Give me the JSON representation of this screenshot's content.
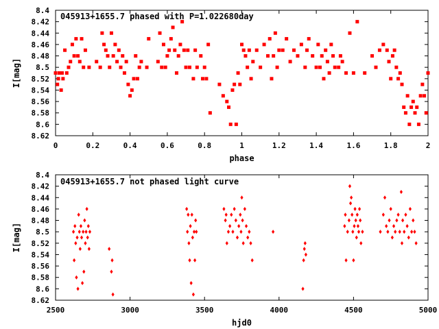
{
  "chart_data": [
    {
      "type": "scatter",
      "title": "045913+1655.7 phased with P=1.022680day",
      "xlabel": "phase",
      "ylabel": "I[mag]",
      "xlim": [
        0,
        2
      ],
      "ylim": [
        8.62,
        8.4
      ],
      "y_inverted": true,
      "xticks": [
        0,
        0.2,
        0.4,
        0.6,
        0.8,
        1,
        1.2,
        1.4,
        1.6,
        1.8,
        2
      ],
      "xtick_labels": [
        "0",
        "0.2",
        "0.4",
        "0.6",
        "0.8",
        "1",
        "1.2",
        "1.4",
        "1.6",
        "1.8",
        "2"
      ],
      "yticks": [
        8.4,
        8.42,
        8.44,
        8.46,
        8.48,
        8.5,
        8.52,
        8.54,
        8.56,
        8.58,
        8.6,
        8.62
      ],
      "ytick_labels": [
        "8.4",
        "8.42",
        "8.44",
        "8.46",
        "8.48",
        "8.5",
        "8.52",
        "8.54",
        "8.56",
        "8.58",
        "8.6",
        "8.62"
      ],
      "color": "#ff0000",
      "marker": "square",
      "points": [
        [
          0.0,
          8.51
        ],
        [
          0.01,
          8.53
        ],
        [
          0.015,
          8.52
        ],
        [
          0.02,
          8.51
        ],
        [
          0.03,
          8.54
        ],
        [
          0.035,
          8.51
        ],
        [
          0.04,
          8.52
        ],
        [
          0.05,
          8.47
        ],
        [
          0.06,
          8.51
        ],
        [
          0.07,
          8.5
        ],
        [
          0.08,
          8.49
        ],
        [
          0.09,
          8.46
        ],
        [
          0.1,
          8.48
        ],
        [
          0.11,
          8.45
        ],
        [
          0.12,
          8.48
        ],
        [
          0.13,
          8.49
        ],
        [
          0.14,
          8.45
        ],
        [
          0.15,
          8.5
        ],
        [
          0.16,
          8.47
        ],
        [
          0.18,
          8.5
        ],
        [
          0.22,
          8.49
        ],
        [
          0.24,
          8.5
        ],
        [
          0.25,
          8.44
        ],
        [
          0.26,
          8.46
        ],
        [
          0.27,
          8.47
        ],
        [
          0.28,
          8.48
        ],
        [
          0.29,
          8.5
        ],
        [
          0.3,
          8.44
        ],
        [
          0.31,
          8.48
        ],
        [
          0.32,
          8.46
        ],
        [
          0.33,
          8.49
        ],
        [
          0.34,
          8.47
        ],
        [
          0.35,
          8.5
        ],
        [
          0.36,
          8.48
        ],
        [
          0.37,
          8.51
        ],
        [
          0.38,
          8.49
        ],
        [
          0.39,
          8.53
        ],
        [
          0.4,
          8.55
        ],
        [
          0.41,
          8.54
        ],
        [
          0.42,
          8.52
        ],
        [
          0.43,
          8.48
        ],
        [
          0.44,
          8.52
        ],
        [
          0.45,
          8.5
        ],
        [
          0.46,
          8.49
        ],
        [
          0.49,
          8.5
        ],
        [
          0.5,
          8.45
        ],
        [
          0.55,
          8.49
        ],
        [
          0.56,
          8.44
        ],
        [
          0.57,
          8.5
        ],
        [
          0.58,
          8.46
        ],
        [
          0.59,
          8.5
        ],
        [
          0.6,
          8.48
        ],
        [
          0.61,
          8.47
        ],
        [
          0.62,
          8.45
        ],
        [
          0.63,
          8.43
        ],
        [
          0.64,
          8.47
        ],
        [
          0.65,
          8.51
        ],
        [
          0.66,
          8.48
        ],
        [
          0.67,
          8.46
        ],
        [
          0.68,
          8.42
        ],
        [
          0.69,
          8.47
        ],
        [
          0.7,
          8.5
        ],
        [
          0.71,
          8.47
        ],
        [
          0.72,
          8.5
        ],
        [
          0.74,
          8.52
        ],
        [
          0.75,
          8.47
        ],
        [
          0.76,
          8.5
        ],
        [
          0.78,
          8.48
        ],
        [
          0.79,
          8.52
        ],
        [
          0.8,
          8.5
        ],
        [
          0.81,
          8.52
        ],
        [
          0.82,
          8.46
        ],
        [
          0.83,
          8.58
        ],
        [
          0.88,
          8.53
        ],
        [
          0.9,
          8.55
        ],
        [
          0.92,
          8.56
        ],
        [
          0.93,
          8.57
        ],
        [
          0.94,
          8.6
        ],
        [
          0.95,
          8.54
        ],
        [
          0.96,
          8.53
        ],
        [
          0.97,
          8.6
        ],
        [
          0.98,
          8.51
        ],
        [
          0.99,
          8.53
        ],
        [
          1.0,
          8.46
        ],
        [
          1.01,
          8.47
        ],
        [
          1.02,
          8.48
        ],
        [
          1.03,
          8.5
        ],
        [
          1.04,
          8.47
        ],
        [
          1.05,
          8.52
        ],
        [
          1.06,
          8.49
        ],
        [
          1.08,
          8.47
        ],
        [
          1.1,
          8.5
        ],
        [
          1.12,
          8.46
        ],
        [
          1.14,
          8.48
        ],
        [
          1.15,
          8.45
        ],
        [
          1.16,
          8.52
        ],
        [
          1.17,
          8.48
        ],
        [
          1.18,
          8.44
        ],
        [
          1.19,
          8.5
        ],
        [
          1.2,
          8.47
        ],
        [
          1.22,
          8.47
        ],
        [
          1.24,
          8.45
        ],
        [
          1.26,
          8.49
        ],
        [
          1.28,
          8.47
        ],
        [
          1.3,
          8.48
        ],
        [
          1.32,
          8.46
        ],
        [
          1.34,
          8.5
        ],
        [
          1.35,
          8.47
        ],
        [
          1.36,
          8.45
        ],
        [
          1.38,
          8.48
        ],
        [
          1.4,
          8.5
        ],
        [
          1.41,
          8.46
        ],
        [
          1.42,
          8.5
        ],
        [
          1.43,
          8.48
        ],
        [
          1.44,
          8.52
        ],
        [
          1.45,
          8.47
        ],
        [
          1.46,
          8.49
        ],
        [
          1.47,
          8.51
        ],
        [
          1.48,
          8.46
        ],
        [
          1.49,
          8.48
        ],
        [
          1.5,
          8.5
        ],
        [
          1.52,
          8.5
        ],
        [
          1.53,
          8.48
        ],
        [
          1.54,
          8.49
        ],
        [
          1.56,
          8.51
        ],
        [
          1.58,
          8.44
        ],
        [
          1.6,
          8.51
        ],
        [
          1.62,
          8.42
        ],
        [
          1.66,
          8.51
        ],
        [
          1.7,
          8.48
        ],
        [
          1.72,
          8.5
        ],
        [
          1.74,
          8.47
        ],
        [
          1.76,
          8.46
        ],
        [
          1.78,
          8.47
        ],
        [
          1.79,
          8.49
        ],
        [
          1.8,
          8.52
        ],
        [
          1.81,
          8.48
        ],
        [
          1.82,
          8.47
        ],
        [
          1.83,
          8.5
        ],
        [
          1.84,
          8.52
        ],
        [
          1.85,
          8.51
        ],
        [
          1.86,
          8.53
        ],
        [
          1.87,
          8.57
        ],
        [
          1.88,
          8.58
        ],
        [
          1.89,
          8.55
        ],
        [
          1.9,
          8.6
        ],
        [
          1.91,
          8.57
        ],
        [
          1.92,
          8.56
        ],
        [
          1.93,
          8.58
        ],
        [
          1.94,
          8.57
        ],
        [
          1.95,
          8.6
        ],
        [
          1.96,
          8.55
        ],
        [
          1.97,
          8.53
        ],
        [
          1.98,
          8.55
        ],
        [
          1.99,
          8.58
        ],
        [
          2.0,
          8.51
        ]
      ]
    },
    {
      "type": "scatter",
      "title": "045913+1655.7 not phased light curve",
      "xlabel": "hjd0",
      "ylabel": "I[mag]",
      "xlim": [
        2500,
        5000
      ],
      "ylim": [
        8.62,
        8.4
      ],
      "y_inverted": true,
      "xticks": [
        2500,
        3000,
        3500,
        4000,
        4500,
        5000
      ],
      "xtick_labels": [
        "2500",
        "3000",
        "3500",
        "4000",
        "4500",
        "5000"
      ],
      "yticks": [
        8.4,
        8.42,
        8.44,
        8.46,
        8.48,
        8.5,
        8.52,
        8.54,
        8.56,
        8.58,
        8.6,
        8.62
      ],
      "ytick_labels": [
        "8.4",
        "8.42",
        "8.44",
        "8.46",
        "8.48",
        "8.5",
        "8.52",
        "8.54",
        "8.56",
        "8.58",
        "8.6",
        "8.62"
      ],
      "color": "#ff0000",
      "marker": "diamond",
      "points": [
        [
          2620,
          8.5
        ],
        [
          2625,
          8.55
        ],
        [
          2630,
          8.49
        ],
        [
          2635,
          8.52
        ],
        [
          2640,
          8.58
        ],
        [
          2645,
          8.51
        ],
        [
          2650,
          8.6
        ],
        [
          2655,
          8.47
        ],
        [
          2660,
          8.5
        ],
        [
          2665,
          8.53
        ],
        [
          2670,
          8.49
        ],
        [
          2675,
          8.51
        ],
        [
          2680,
          8.59
        ],
        [
          2685,
          8.5
        ],
        [
          2690,
          8.57
        ],
        [
          2695,
          8.48
        ],
        [
          2700,
          8.52
        ],
        [
          2705,
          8.5
        ],
        [
          2710,
          8.46
        ],
        [
          2715,
          8.51
        ],
        [
          2720,
          8.49
        ],
        [
          2725,
          8.53
        ],
        [
          2730,
          8.5
        ],
        [
          2860,
          8.53
        ],
        [
          2875,
          8.57
        ],
        [
          2880,
          8.55
        ],
        [
          2885,
          8.61
        ],
        [
          3380,
          8.46
        ],
        [
          3385,
          8.5
        ],
        [
          3390,
          8.47
        ],
        [
          3395,
          8.52
        ],
        [
          3400,
          8.55
        ],
        [
          3405,
          8.49
        ],
        [
          3410,
          8.59
        ],
        [
          3415,
          8.47
        ],
        [
          3420,
          8.51
        ],
        [
          3425,
          8.61
        ],
        [
          3430,
          8.5
        ],
        [
          3435,
          8.55
        ],
        [
          3440,
          8.48
        ],
        [
          3445,
          8.5
        ],
        [
          3630,
          8.46
        ],
        [
          3640,
          8.48
        ],
        [
          3645,
          8.47
        ],
        [
          3650,
          8.52
        ],
        [
          3660,
          8.5
        ],
        [
          3670,
          8.49
        ],
        [
          3680,
          8.47
        ],
        [
          3690,
          8.5
        ],
        [
          3700,
          8.46
        ],
        [
          3710,
          8.48
        ],
        [
          3720,
          8.51
        ],
        [
          3730,
          8.49
        ],
        [
          3740,
          8.47
        ],
        [
          3745,
          8.5
        ],
        [
          3750,
          8.44
        ],
        [
          3755,
          8.48
        ],
        [
          3760,
          8.52
        ],
        [
          3770,
          8.46
        ],
        [
          3780,
          8.49
        ],
        [
          3790,
          8.51
        ],
        [
          3800,
          8.5
        ],
        [
          3810,
          8.52
        ],
        [
          3820,
          8.55
        ],
        [
          3960,
          8.5
        ],
        [
          4160,
          8.6
        ],
        [
          4165,
          8.55
        ],
        [
          4170,
          8.53
        ],
        [
          4175,
          8.52
        ],
        [
          4180,
          8.54
        ],
        [
          4440,
          8.49
        ],
        [
          4445,
          8.47
        ],
        [
          4450,
          8.55
        ],
        [
          4460,
          8.5
        ],
        [
          4470,
          8.48
        ],
        [
          4475,
          8.42
        ],
        [
          4480,
          8.45
        ],
        [
          4485,
          8.44
        ],
        [
          4490,
          8.47
        ],
        [
          4495,
          8.5
        ],
        [
          4500,
          8.55
        ],
        [
          4505,
          8.49
        ],
        [
          4510,
          8.46
        ],
        [
          4515,
          8.48
        ],
        [
          4520,
          8.51
        ],
        [
          4525,
          8.47
        ],
        [
          4530,
          8.49
        ],
        [
          4535,
          8.5
        ],
        [
          4540,
          8.46
        ],
        [
          4545,
          8.48
        ],
        [
          4550,
          8.52
        ],
        [
          4560,
          8.5
        ],
        [
          4680,
          8.5
        ],
        [
          4700,
          8.47
        ],
        [
          4710,
          8.44
        ],
        [
          4720,
          8.49
        ],
        [
          4730,
          8.5
        ],
        [
          4740,
          8.48
        ],
        [
          4750,
          8.46
        ],
        [
          4760,
          8.51
        ],
        [
          4770,
          8.49
        ],
        [
          4780,
          8.5
        ],
        [
          4790,
          8.48
        ],
        [
          4800,
          8.47
        ],
        [
          4810,
          8.5
        ],
        [
          4820,
          8.43
        ],
        [
          4825,
          8.52
        ],
        [
          4830,
          8.48
        ],
        [
          4840,
          8.5
        ],
        [
          4850,
          8.47
        ],
        [
          4860,
          8.49
        ],
        [
          4870,
          8.51
        ],
        [
          4880,
          8.46
        ],
        [
          4890,
          8.5
        ],
        [
          4900,
          8.48
        ],
        [
          4910,
          8.5
        ],
        [
          4920,
          8.52
        ]
      ]
    }
  ]
}
